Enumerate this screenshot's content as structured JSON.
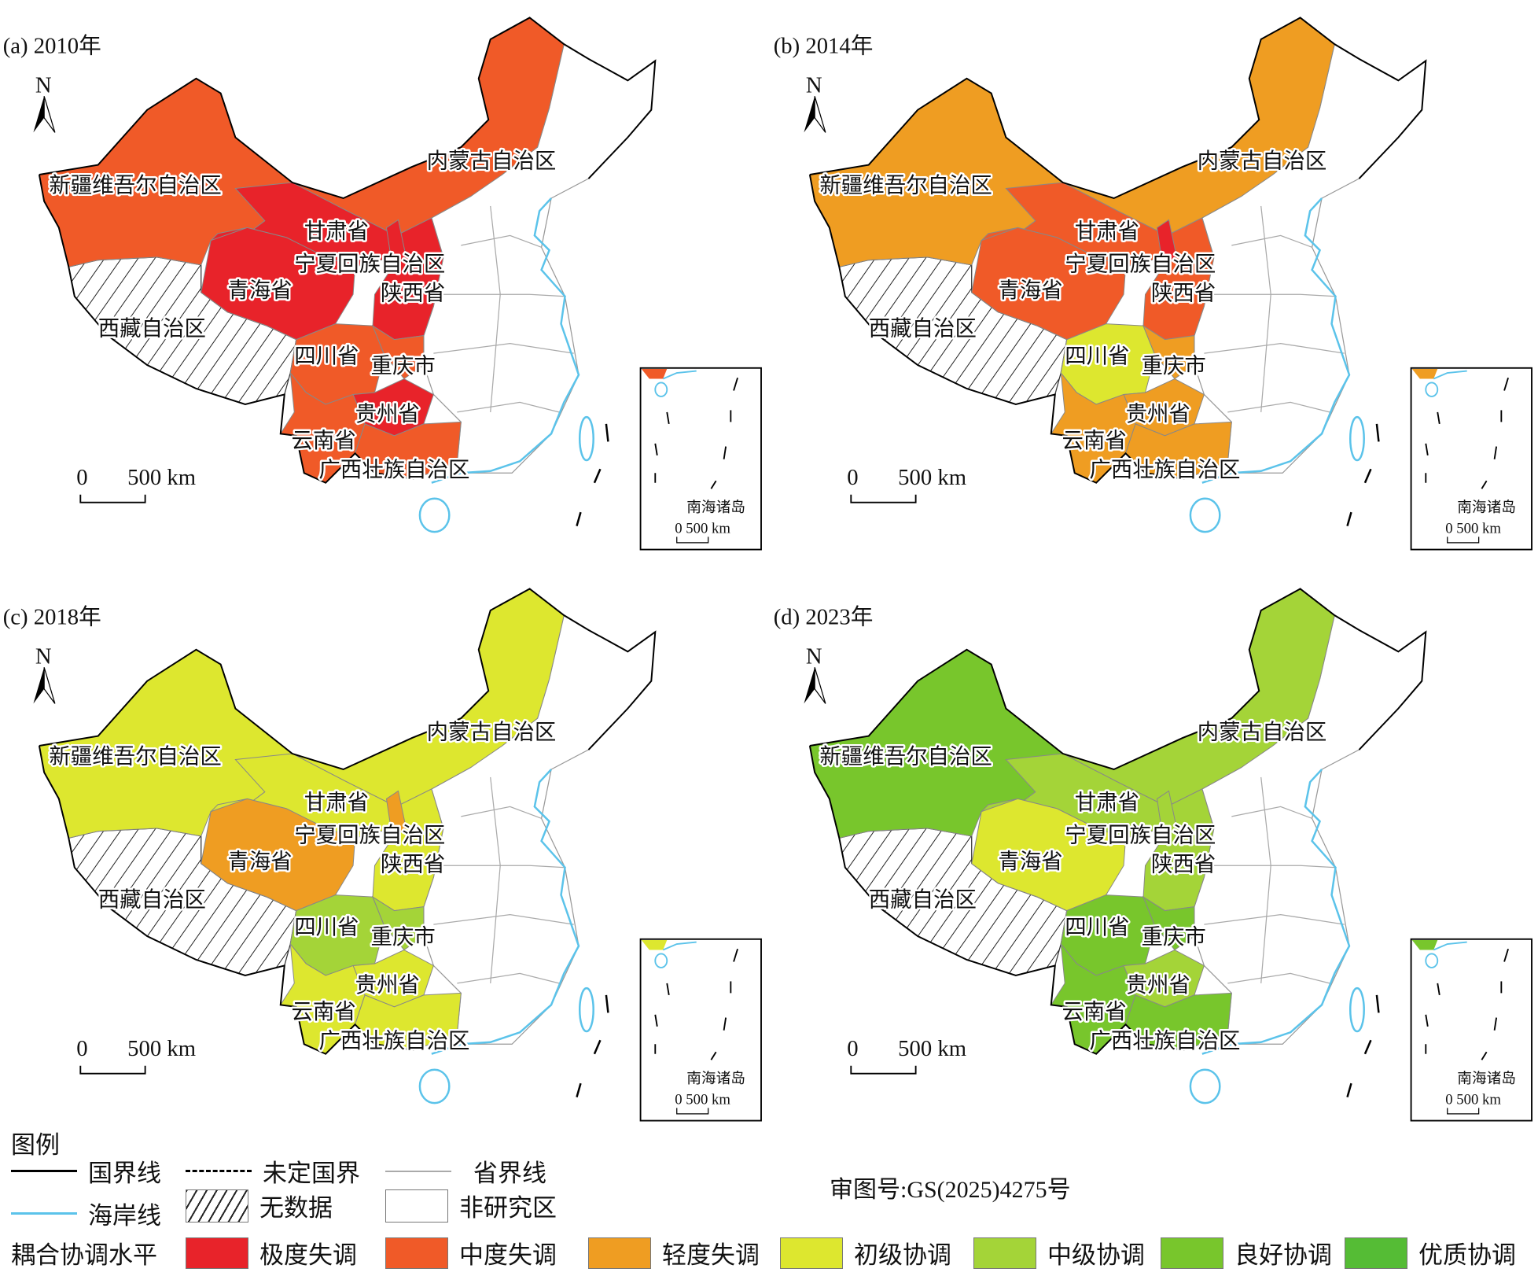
{
  "colors": {
    "极度失调": "#E8232A",
    "中度失调": "#F05A28",
    "轻度失调": "#EF9D22",
    "初级协调": "#DDE72F",
    "中级协调": "#A4D438",
    "良好协调": "#78C62C",
    "优质协调": "#55BC35",
    "coastline": "#5BC3EA"
  },
  "province_names": {
    "xinjiang": "新疆维吾尔自治区",
    "neimenggu": "内蒙古自治区",
    "gansu": "甘肃省",
    "ningxia": "宁夏回族自治区",
    "qinghai": "青海省",
    "shaanxi": "陕西省",
    "xizang": "西藏自治区",
    "sichuan": "四川省",
    "chongqing": "重庆市",
    "guizhou": "贵州省",
    "yunnan": "云南省",
    "guangxi": "广西壮族自治区"
  },
  "map_common": {
    "north": "N",
    "scale_zero": "0",
    "scale_label": "500 km",
    "inset_title": "南海诸岛",
    "inset_scale": "0   500 km"
  },
  "panels": [
    {
      "title": "(a) 2010年",
      "levels": {
        "xinjiang": "中度失调",
        "neimenggu": "中度失调",
        "gansu": "极度失调",
        "ningxia": "极度失调",
        "qinghai": "极度失调",
        "shaanxi": "极度失调",
        "sichuan": "中度失调",
        "chongqing": "中度失调",
        "guizhou": "极度失调",
        "yunnan": "中度失调",
        "guangxi": "中度失调"
      }
    },
    {
      "title": "(b) 2014年",
      "levels": {
        "xinjiang": "轻度失调",
        "neimenggu": "轻度失调",
        "gansu": "中度失调",
        "ningxia": "极度失调",
        "qinghai": "中度失调",
        "shaanxi": "中度失调",
        "sichuan": "初级协调",
        "chongqing": "轻度失调",
        "guizhou": "轻度失调",
        "yunnan": "轻度失调",
        "guangxi": "轻度失调"
      }
    },
    {
      "title": "(c) 2018年",
      "levels": {
        "xinjiang": "初级协调",
        "neimenggu": "初级协调",
        "gansu": "初级协调",
        "ningxia": "轻度失调",
        "qinghai": "轻度失调",
        "shaanxi": "初级协调",
        "sichuan": "中级协调",
        "chongqing": "中级协调",
        "guizhou": "初级协调",
        "yunnan": "初级协调",
        "guangxi": "初级协调"
      }
    },
    {
      "title": "(d) 2023年",
      "levels": {
        "xinjiang": "良好协调",
        "neimenggu": "中级协调",
        "gansu": "中级协调",
        "ningxia": "中级协调",
        "qinghai": "初级协调",
        "shaanxi": "中级协调",
        "sichuan": "良好协调",
        "chongqing": "良好协调",
        "guizhou": "中级协调",
        "yunnan": "良好协调",
        "guangxi": "良好协调"
      }
    }
  ],
  "legend": {
    "title": "图例",
    "national_border": "国界线",
    "undetermined_border": "未定国界",
    "provincial_border": "省界线",
    "coastline": "海岸线",
    "no_data": "无数据",
    "non_study": "非研究区",
    "level_title": "耦合协调水平",
    "levels": [
      "极度失调",
      "中度失调",
      "轻度失调",
      "初级协调",
      "中级协调",
      "良好协调",
      "优质协调"
    ]
  },
  "approval_number": "审图号:GS(2025)4275号"
}
